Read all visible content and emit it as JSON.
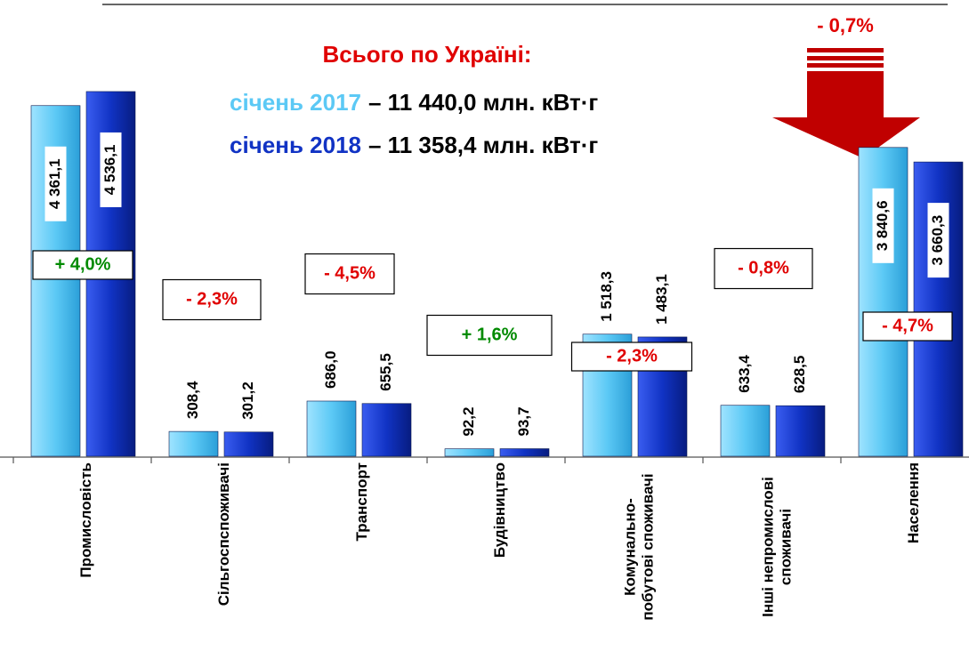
{
  "chart_data": {
    "type": "bar",
    "title": "Всього по Україні:",
    "totals": [
      "– 11 440,0 млн. кВт·г",
      "– 11 358,4 млн. кВт·г"
    ],
    "total_change": "- 0,7%",
    "categories": [
      "Промисловість",
      "Сільгоспспоживачі",
      "Транспорт",
      "Будівництво",
      "Комунально-\nпобутові споживачі",
      "Інші непромислові\nспоживачі",
      "Населення"
    ],
    "series": [
      {
        "name": "січень 2017",
        "color": "#5cc9f5",
        "values": [
          4361.1,
          308.4,
          686.0,
          92.2,
          1518.3,
          633.4,
          3840.6
        ],
        "value_labels": [
          "4 361,1",
          "308,4",
          "686,0",
          "92,2",
          "1 518,3",
          "633,4",
          "3 840,6"
        ]
      },
      {
        "name": "січень 2018",
        "color": "#1133c4",
        "values": [
          4536.1,
          301.2,
          655.5,
          93.7,
          1483.1,
          628.5,
          3660.3
        ],
        "value_labels": [
          "4 536,1",
          "301,2",
          "655,5",
          "93,7",
          "1 483,1",
          "628,5",
          "3 660,3"
        ]
      }
    ],
    "changes": [
      {
        "text": "+ 4,0%",
        "color": "#008a00"
      },
      {
        "text": "- 2,3%",
        "color": "#e00000"
      },
      {
        "text": "- 4,5%",
        "color": "#e00000"
      },
      {
        "text": "+ 1,6%",
        "color": "#008a00"
      },
      {
        "text": "- 2,3%",
        "color": "#e00000"
      },
      {
        "text": "- 0,8%",
        "color": "#e00000"
      },
      {
        "text": "- 4,7%",
        "color": "#e00000"
      }
    ],
    "ylim": [
      0,
      5000
    ]
  }
}
